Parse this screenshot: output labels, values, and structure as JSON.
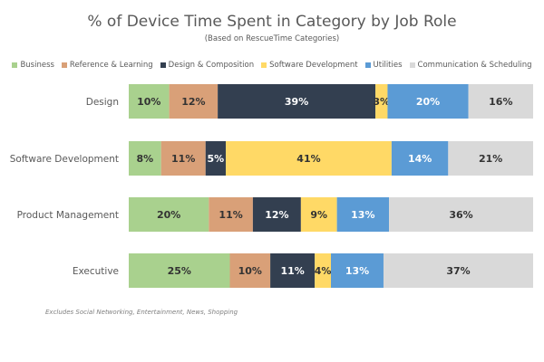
{
  "chart_data": {
    "type": "bar",
    "orientation": "horizontal",
    "stacked": true,
    "title": "% of Device Time Spent in Category by Job Role",
    "subtitle": "(Based on RescueTime Categories)",
    "footnote": "Excludes Social Networking, Entertainment, News, Shopping",
    "legend_position": "top",
    "grid": false,
    "categories": [
      "Design",
      "Software Development",
      "Product Management",
      "Executive"
    ],
    "series": [
      {
        "name": "Business",
        "color": "#a9d18e",
        "label_color": "#333333",
        "values": [
          10,
          8,
          20,
          25
        ]
      },
      {
        "name": "Reference & Learning",
        "color": "#d9a078",
        "label_color": "#333333",
        "values": [
          12,
          11,
          11,
          10
        ]
      },
      {
        "name": "Design & Composition",
        "color": "#333f50",
        "label_color": "#ffffff",
        "values": [
          39,
          5,
          12,
          11
        ]
      },
      {
        "name": "Software Development",
        "color": "#ffd966",
        "label_color": "#333333",
        "values": [
          3,
          41,
          9,
          4
        ]
      },
      {
        "name": "Utilities",
        "color": "#5b9bd5",
        "label_color": "#ffffff",
        "values": [
          20,
          14,
          13,
          13
        ]
      },
      {
        "name": "Communication & Scheduling",
        "color": "#d9d9d9",
        "label_color": "#333333",
        "values": [
          16,
          21,
          36,
          37
        ]
      }
    ],
    "value_suffix": "%"
  }
}
